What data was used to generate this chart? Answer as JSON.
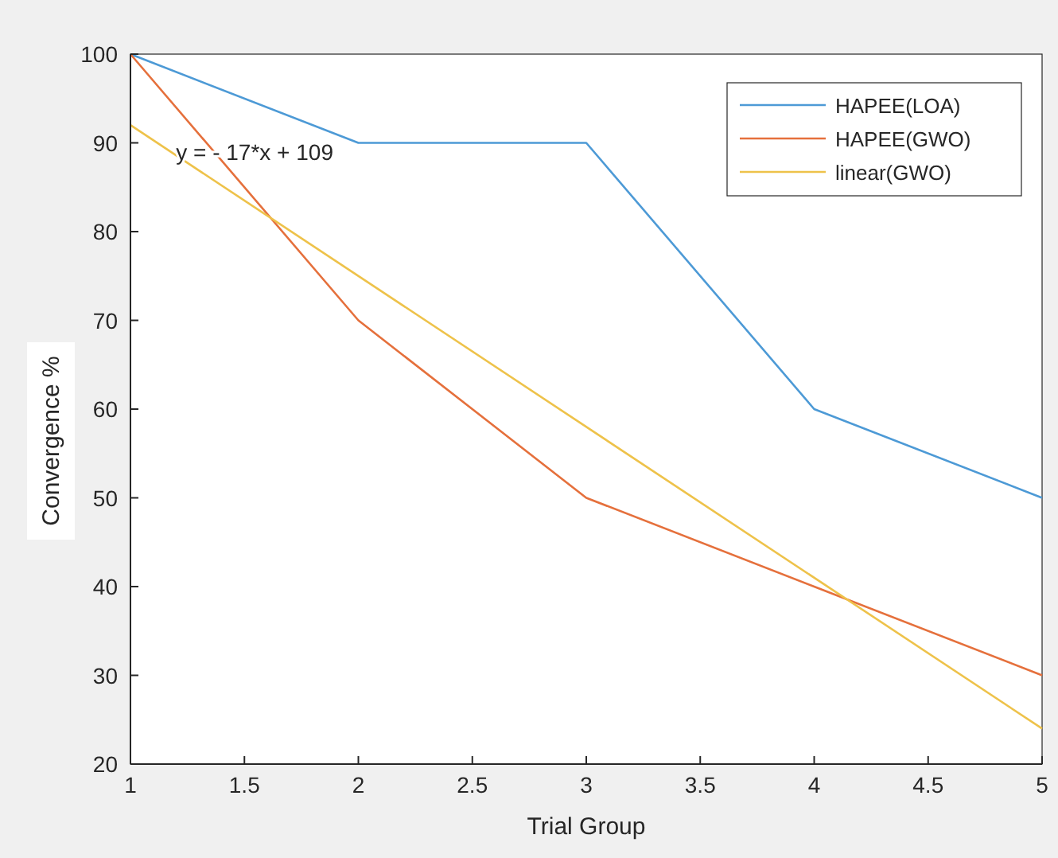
{
  "chart_data": {
    "type": "line",
    "xlabel": "Trial Group",
    "ylabel": "Convergence %",
    "x": [
      1,
      2,
      3,
      4,
      5
    ],
    "xlim": [
      1,
      5
    ],
    "xticks": [
      1,
      1.5,
      2,
      2.5,
      3,
      3.5,
      4,
      4.5,
      5
    ],
    "ylim": [
      20,
      100
    ],
    "yticks": [
      20,
      30,
      40,
      50,
      60,
      70,
      80,
      90,
      100
    ],
    "series": [
      {
        "name": "HAPEE(LOA)",
        "color": "#4d9ad6",
        "values": [
          100,
          90,
          90,
          60,
          50
        ]
      },
      {
        "name": "HAPEE(GWO)",
        "color": "#e5703c",
        "values": [
          100,
          70,
          50,
          40,
          30
        ]
      },
      {
        "name": "linear(GWO)",
        "color": "#eec24a",
        "x": [
          1,
          5
        ],
        "values": [
          92,
          24
        ]
      }
    ],
    "annotations": [
      {
        "text": "y = - 17*x + 109",
        "x": 1.2,
        "y": 89
      }
    ],
    "legend": "top right",
    "grid": false
  }
}
